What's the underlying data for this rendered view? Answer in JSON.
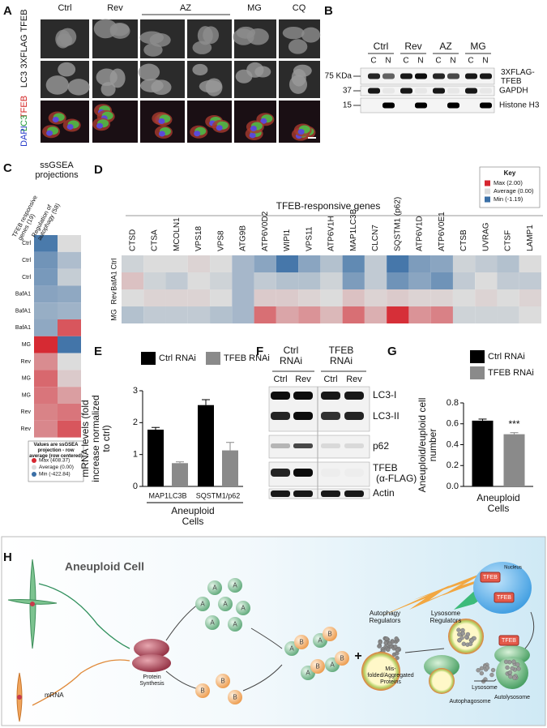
{
  "panels": {
    "A": {
      "label": "A",
      "columns": [
        "Ctrl",
        "Rev",
        "AZ",
        "MG",
        "CQ"
      ],
      "rows": [
        "3XFLAG TFEB",
        "LC3"
      ],
      "merge": [
        "TFEB",
        "LC3",
        "DAPI"
      ]
    },
    "B": {
      "label": "B",
      "lanes": [
        "Ctrl",
        "Rev",
        "AZ",
        "MG"
      ],
      "fractions": [
        "C",
        "N"
      ],
      "markers": [
        "75 KDa",
        "37",
        "15"
      ],
      "bands": [
        "3XFLAG-TFEB",
        "GAPDH",
        "Histone H3"
      ]
    },
    "C": {
      "label": "C",
      "title": "ssGSEA projections",
      "columns": [
        "TFEB responsive genes (19)",
        "Regulation of autophagy (58)"
      ],
      "rows": [
        "Ctrl",
        "Ctrl",
        "Ctrl",
        "BafA1",
        "BafA1",
        "BafA1",
        "MG",
        "Rev",
        "MG",
        "MG",
        "Rev",
        "Rev"
      ],
      "values": [
        [
          -380,
          0
        ],
        [
          -280,
          -120
        ],
        [
          -260,
          -60
        ],
        [
          -220,
          -200
        ],
        [
          -180,
          -160
        ],
        [
          -200,
          300
        ],
        [
          400,
          -400
        ],
        [
          180,
          0
        ],
        [
          260,
          40
        ],
        [
          230,
          140
        ],
        [
          200,
          230
        ],
        [
          190,
          300
        ]
      ],
      "key_title": "Values are ssGSEA projection - row average (row centered)",
      "key": [
        {
          "value": 408.37,
          "label": "Max (408.37)"
        },
        {
          "value": 0,
          "label": "Average (0.00)"
        },
        {
          "value": -422.84,
          "label": "Min (-422.84)"
        }
      ]
    },
    "D": {
      "label": "D",
      "title": "TFEB-responsive genes",
      "genes": [
        "CTSD",
        "CTSA",
        "MCOLN1",
        "VPS18",
        "VPS8",
        "ATG9B",
        "ATP6V0D2",
        "WIPI1",
        "VPS11",
        "ATP6V1H",
        "MAP1LC3B",
        "CLCN7",
        "SQSTM1 (p62)",
        "ATP6V1D",
        "ATP6V0E1",
        "CTSB",
        "UVRAG",
        "CTSF",
        "LAMP1"
      ],
      "rows": [
        "Ctrl",
        "BafA1",
        "Rev",
        "MG"
      ],
      "values": [
        [
          -0.1,
          0,
          0,
          0.1,
          0,
          -0.4,
          -0.6,
          -1.1,
          -0.6,
          -0.3,
          -0.9,
          -0.2,
          -1.1,
          -0.7,
          -0.6,
          -0.1,
          -0.2,
          -0.3,
          0
        ],
        [
          0.3,
          -0.1,
          -0.2,
          0,
          -0.1,
          -0.4,
          -0.2,
          -0.3,
          -0.3,
          -0.1,
          -0.7,
          -0.2,
          -0.8,
          -0.6,
          -0.8,
          -0.2,
          0,
          -0.2,
          -0.2
        ],
        [
          0,
          0.1,
          0.1,
          0.1,
          0,
          -0.4,
          0.2,
          0.2,
          0.1,
          0,
          0.3,
          0.1,
          0.2,
          0.1,
          0.1,
          0,
          0.1,
          0,
          0.1
        ],
        [
          -0.3,
          -0.2,
          -0.2,
          -0.2,
          -0.3,
          -0.4,
          1.2,
          0.6,
          0.8,
          0.4,
          1.2,
          0.5,
          1.9,
          0.8,
          1.0,
          -0.1,
          -0.1,
          -0.1,
          0
        ]
      ],
      "key_title": "Key",
      "key": [
        {
          "value": 2,
          "label": "Max (2.00)"
        },
        {
          "value": 0,
          "label": "Average (0.00)"
        },
        {
          "value": -1.19,
          "label": "Min (-1.19)"
        }
      ]
    },
    "E": {
      "label": "E"
    },
    "F": {
      "label": "F",
      "groups": [
        "Ctrl RNAi",
        "TFEB RNAi"
      ],
      "lanes": [
        "Ctrl",
        "Rev",
        "Ctrl",
        "Rev"
      ],
      "bands": [
        "LC3-I",
        "LC3-II",
        "p62",
        "TFEB",
        "(α-FLAG)",
        "Actin"
      ]
    },
    "G": {
      "label": "G"
    },
    "H": {
      "label": "H",
      "cell": "Aneuploid Cell",
      "mrna": "mRNA",
      "synthesis": "Protein Synthesis",
      "protein_a": "A",
      "protein_b": "B",
      "plus": "+",
      "misfolded": "Mis-folded/Aggregated Proteins",
      "autophagy_regulators": "Autophagy Regulators",
      "lysosome_regulators": "Lysosome Regulators",
      "autophagosome": "Autophagosome",
      "lysosome": "Lysosome",
      "autolysosome": "Autolysosome",
      "nucleus": "Nucleus",
      "tfeb": "TFEB"
    }
  },
  "chart_data": [
    {
      "type": "bar",
      "categories": [
        "MAP1LC3B",
        "SQSTM1/p62"
      ],
      "xlabel": "Aneuploid Cells",
      "ylabel": "mRNA levels (fold increase normalized to ctrl)",
      "series": [
        {
          "name": "Ctrl RNAi",
          "color": "#000000",
          "values": [
            1.78,
            2.55
          ],
          "errors": [
            0.07,
            0.17
          ]
        },
        {
          "name": "TFEB RNAi",
          "color": "#8a8a8a",
          "values": [
            0.73,
            1.13
          ],
          "errors": [
            0.04,
            0.25
          ]
        }
      ],
      "ylim": [
        0,
        3
      ],
      "yticks": [
        0,
        1,
        2,
        3
      ],
      "legend": "top"
    },
    {
      "type": "bar",
      "categories": [
        null
      ],
      "xlabel": "Aneuploid Cells",
      "ylabel": "Aneuploid/euploid cell number",
      "series": [
        {
          "name": "Ctrl RNAi",
          "color": "#000000",
          "values": [
            0.63
          ],
          "errors": [
            0.015
          ]
        },
        {
          "name": "TFEB RNAi",
          "color": "#8a8a8a",
          "values": [
            0.5
          ],
          "errors": [
            0.015
          ]
        }
      ],
      "ylim": [
        0,
        0.8
      ],
      "yticks": [
        {
          "value": 0,
          "label": "0.0"
        },
        0.2,
        0.4,
        0.6,
        0.8
      ],
      "annotation": "***",
      "legend": "top"
    }
  ]
}
